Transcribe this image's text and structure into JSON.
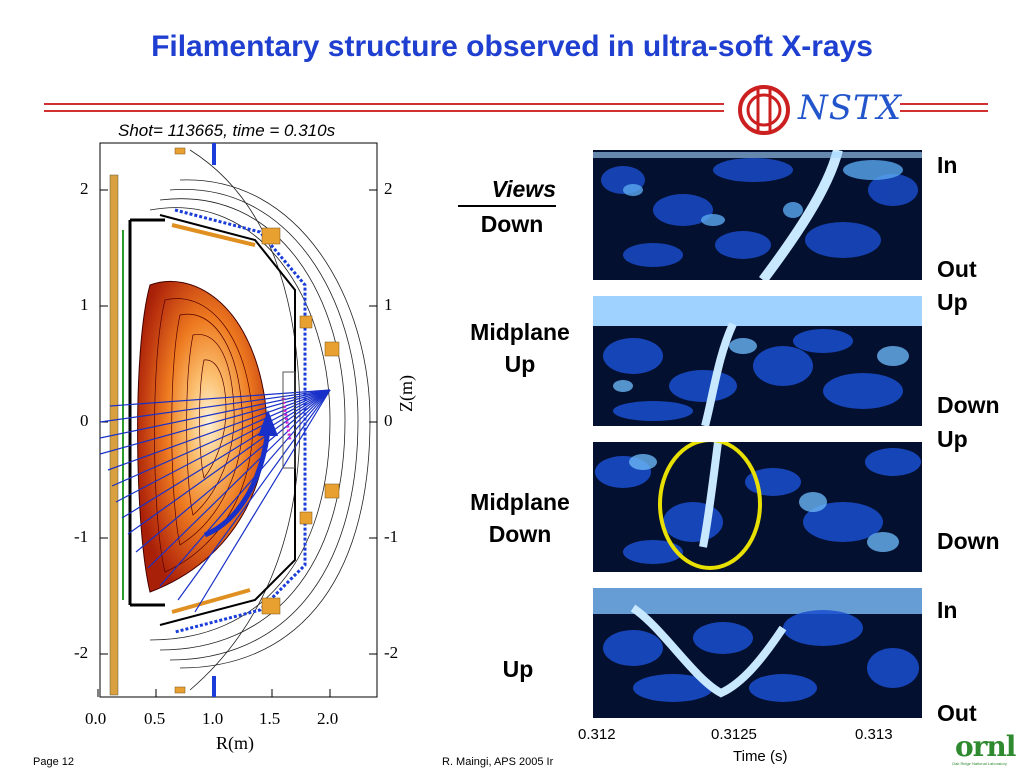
{
  "slide": {
    "title": "Filamentary structure observed in ultra-soft X-rays",
    "page": "Page 12",
    "footer_center": "R. Maingi, APS 2005  Ir",
    "logo_text": "NSTX",
    "ornl_text": "ornl",
    "ornl_subtext": "Oak Ridge National Laboratory"
  },
  "equilibrium_plot": {
    "shot_label": "Shot= 113665, time = 0.310s",
    "xlabel": "R(m)",
    "ylabel": "Z(m)",
    "x_ticks": [
      "0.0",
      "0.5",
      "1.0",
      "1.5",
      "2.0"
    ],
    "y_ticks": [
      "2",
      "1",
      "0",
      "-1",
      "-2"
    ]
  },
  "views": {
    "heading": "Views",
    "labels": [
      "Down",
      "Midplane\nUp",
      "Midplane\nDown",
      "Up"
    ]
  },
  "panel_side_labels": [
    {
      "top": "In",
      "bottom": "Out"
    },
    {
      "top": "Up",
      "bottom": "Down"
    },
    {
      "top": "Up",
      "bottom": "Down"
    },
    {
      "top": "In",
      "bottom": "Out"
    }
  ],
  "time_axis": {
    "label": "Time (s)",
    "ticks": [
      "0.312",
      "0.3125",
      "0.313"
    ]
  },
  "colors": {
    "title": "#1f3fd0",
    "accent_rule": "#d03030",
    "highlight_ellipse": "#e8e000",
    "chord_blue": "#1830c8"
  }
}
